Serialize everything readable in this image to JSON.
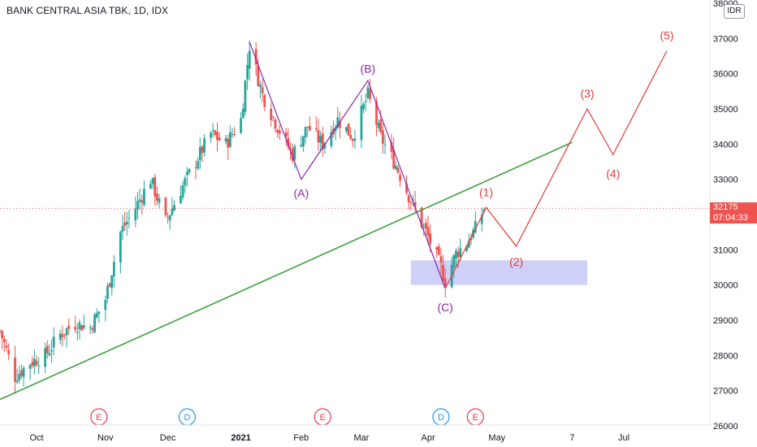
{
  "header": {
    "title": "BANK CENTRAL ASIA TBK, 1D, IDX",
    "currency": "IDR"
  },
  "last_price": {
    "value": "32175",
    "countdown": "07:04:33"
  },
  "colors": {
    "up": "#26a69a",
    "down": "#ef5350",
    "trendline": "#3ba03b",
    "abc": "#8e24aa",
    "impulse": "#e53935",
    "zone": "#c5c8f7",
    "event": "#e53950",
    "dividend": "#2196f3"
  },
  "chart_data": {
    "type": "candlestick",
    "ylim": [
      26000,
      38000
    ],
    "y_ticks": [
      "26000",
      "27000",
      "28000",
      "29000",
      "30000",
      "31000",
      "32000",
      "33000",
      "34000",
      "35000",
      "36000",
      "37000",
      "38000"
    ],
    "x_ticks": [
      {
        "label": "Oct",
        "date": "2020-10-01"
      },
      {
        "label": "Nov",
        "date": "2020-11-02"
      },
      {
        "label": "Dec",
        "date": "2020-12-01"
      },
      {
        "label": "2021",
        "date": "2021-01-04"
      },
      {
        "label": "Feb",
        "date": "2021-02-01"
      },
      {
        "label": "Mar",
        "date": "2021-03-01"
      },
      {
        "label": "Apr",
        "date": "2021-04-01"
      },
      {
        "label": "May",
        "date": "2021-05-03"
      },
      {
        "label": "7",
        "date": "2021-06-07"
      },
      {
        "label": "Jul",
        "date": "2021-07-01"
      }
    ],
    "price_path": [
      [
        "2020-09-14",
        28700
      ],
      [
        "2020-09-21",
        27400
      ],
      [
        "2020-09-28",
        27800
      ],
      [
        "2020-10-05",
        28000
      ],
      [
        "2020-10-12",
        28600
      ],
      [
        "2020-10-19",
        28900
      ],
      [
        "2020-10-26",
        28800
      ],
      [
        "2020-11-02",
        29600
      ],
      [
        "2020-11-09",
        31500
      ],
      [
        "2020-11-16",
        32200
      ],
      [
        "2020-11-23",
        33000
      ],
      [
        "2020-11-30",
        31800
      ],
      [
        "2020-12-07",
        32700
      ],
      [
        "2020-12-14",
        33500
      ],
      [
        "2020-12-21",
        34300
      ],
      [
        "2020-12-28",
        34000
      ],
      [
        "2021-01-04",
        34700
      ],
      [
        "2021-01-08",
        36800
      ],
      [
        "2021-01-14",
        35400
      ],
      [
        "2021-01-21",
        34500
      ],
      [
        "2021-01-28",
        33700
      ],
      [
        "2021-02-04",
        34500
      ],
      [
        "2021-02-11",
        34000
      ],
      [
        "2021-02-18",
        34700
      ],
      [
        "2021-02-25",
        34200
      ],
      [
        "2021-03-04",
        35400
      ],
      [
        "2021-03-10",
        34200
      ],
      [
        "2021-03-17",
        33400
      ],
      [
        "2021-03-24",
        32400
      ],
      [
        "2021-03-31",
        31500
      ],
      [
        "2021-04-07",
        30500
      ],
      [
        "2021-04-09",
        30100
      ],
      [
        "2021-04-14",
        30900
      ],
      [
        "2021-04-19",
        31200
      ],
      [
        "2021-04-23",
        31600
      ],
      [
        "2021-04-27",
        32175
      ]
    ],
    "trendline": {
      "start": [
        "2020-09-14",
        26750
      ],
      "end": [
        "2021-06-07",
        34050
      ]
    },
    "support_zone": {
      "x0": "2021-03-24",
      "x1": "2021-06-14",
      "y0": 30000,
      "y1": 30700
    },
    "abc_wave": [
      {
        "date": "2021-01-08",
        "price": 36900,
        "label": ""
      },
      {
        "date": "2021-02-01",
        "price": 33000,
        "label": "(A)"
      },
      {
        "date": "2021-03-04",
        "price": 35800,
        "label": "(B)"
      },
      {
        "date": "2021-04-09",
        "price": 29900,
        "label": "(C)"
      }
    ],
    "impulse_wave": [
      {
        "date": "2021-04-09",
        "price": 29900,
        "label": ""
      },
      {
        "date": "2021-04-28",
        "price": 32200,
        "label": "(1)"
      },
      {
        "date": "2021-05-12",
        "price": 31100,
        "label": "(2)"
      },
      {
        "date": "2021-06-14",
        "price": 35000,
        "label": "(3)"
      },
      {
        "date": "2021-06-26",
        "price": 33700,
        "label": "(4)"
      },
      {
        "date": "2021-07-21",
        "price": 36650,
        "label": "(5)"
      }
    ],
    "events": [
      {
        "date": "2020-10-30",
        "label": "E",
        "kind": "earnings"
      },
      {
        "date": "2020-12-10",
        "label": "D",
        "kind": "dividend"
      },
      {
        "date": "2021-02-11",
        "label": "E",
        "kind": "earnings"
      },
      {
        "date": "2021-04-07",
        "label": "D",
        "kind": "dividend"
      },
      {
        "date": "2021-04-23",
        "label": "E",
        "kind": "earnings"
      }
    ]
  }
}
